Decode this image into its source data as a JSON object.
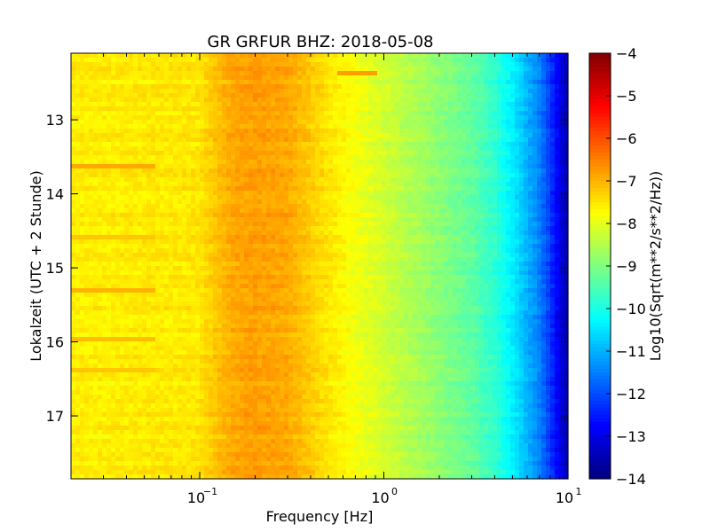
{
  "chart_data": {
    "type": "heatmap",
    "title": "GR GRFUR BHZ: 2018-05-08",
    "xlabel": "Frequency [Hz]",
    "ylabel": "Lokalzeit (UTC + 2 Stunde)",
    "x_scale": "log",
    "x_range_hz": [
      0.02,
      10
    ],
    "x_ticks": [
      {
        "value": 0.1,
        "base": "10",
        "exp": "−1"
      },
      {
        "value": 1,
        "base": "10",
        "exp": "0"
      },
      {
        "value": 10,
        "base": "10",
        "exp": "1"
      }
    ],
    "y_range_hours": [
      12.1,
      17.85
    ],
    "y_inverted": true,
    "y_ticks": [
      {
        "value": 13,
        "label": "13"
      },
      {
        "value": 14,
        "label": "14"
      },
      {
        "value": 15,
        "label": "15"
      },
      {
        "value": 16,
        "label": "16"
      },
      {
        "value": 17,
        "label": "17"
      }
    ],
    "colorbar": {
      "label": "Log10(Sqrt(m**2/s**2/Hz))",
      "range": [
        -14,
        -4
      ],
      "colormap": "jet",
      "ticks": [
        {
          "value": -4,
          "label": "−4"
        },
        {
          "value": -5,
          "label": "−5"
        },
        {
          "value": -6,
          "label": "−6"
        },
        {
          "value": -7,
          "label": "−7"
        },
        {
          "value": -8,
          "label": "−8"
        },
        {
          "value": -9,
          "label": "−9"
        },
        {
          "value": -10,
          "label": "−10"
        },
        {
          "value": -11,
          "label": "−11"
        },
        {
          "value": -12,
          "label": "−12"
        },
        {
          "value": -13,
          "label": "−13"
        },
        {
          "value": -14,
          "label": "−14"
        }
      ]
    },
    "frequency_profile": {
      "freq_hz": [
        0.02,
        0.03,
        0.05,
        0.08,
        0.1,
        0.12,
        0.15,
        0.2,
        0.3,
        0.45,
        0.6,
        1.0,
        1.5,
        2.0,
        3.0,
        4.0,
        5.0,
        6.0,
        7.0,
        8.0,
        9.0,
        10.0
      ],
      "psd_log10": [
        -7.6,
        -7.6,
        -7.55,
        -7.55,
        -7.5,
        -7.2,
        -6.9,
        -6.8,
        -6.9,
        -7.4,
        -7.7,
        -8.2,
        -8.6,
        -8.9,
        -9.3,
        -9.8,
        -10.4,
        -11.0,
        -11.5,
        -12.2,
        -13.0,
        -13.6
      ]
    },
    "bright_bands": [
      {
        "time_hours": 13.65,
        "freq_max_hz": 0.058,
        "psd_log10": -6.9
      },
      {
        "time_hours": 15.3,
        "freq_max_hz": 0.058,
        "psd_log10": -7.0
      },
      {
        "time_hours": 15.95,
        "freq_max_hz": 0.058,
        "psd_log10": -7.1
      },
      {
        "time_hours": 14.6,
        "freq_max_hz": 0.058,
        "psd_log10": -7.2
      },
      {
        "time_hours": 16.4,
        "freq_max_hz": 0.058,
        "psd_log10": -7.2
      },
      {
        "time_hours": 12.35,
        "freq_max_hz": 0.92,
        "freq_min_hz": 0.55,
        "psd_log10": -6.8
      }
    ]
  }
}
